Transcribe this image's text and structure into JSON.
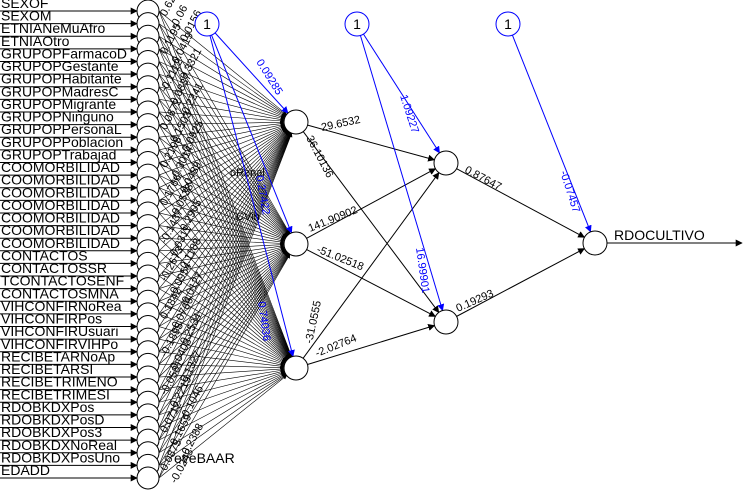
{
  "network": {
    "inputs": [
      "SEXOF",
      "SEXOM",
      "ETNIANeMuAfro",
      "ETNIAOtro",
      "GRUPOPFarmacoD",
      "GRUPOPGestante",
      "GRUPOPHabitante",
      "GRUPOPMadresC",
      "GRUPOPMigrante",
      "GRUPOPNinguno",
      "GRUPOPPersonaL",
      "GRUPOPPoblacion",
      "GRUPOPTrabajad",
      "COOMORBILIDAD",
      "COOMORBILIDAD",
      "COOMORBILIDAD",
      "COOMORBILIDAD",
      "COOMORBILIDAD",
      "COOMORBILIDAD",
      "COOMORBILIDAD",
      "CONTACTOS",
      "CONTACTOSSR",
      "TCONTACTOSENF",
      "CONTACTOSMNA",
      "VIHCONFIRNoRea",
      "VIHCONFIRPos",
      "VIHCONFIRUsuari",
      "VIHCONFIRVIHPo",
      "RECIBETARNoAp",
      "RECIBETARSI",
      "RECIBETRIMENO",
      "RECIBETRIMESI",
      "RDOBKDXPos",
      "RDOBKDXPosD",
      "RDOBKDXPos3",
      "RDOBKDXNoReal",
      "RDOBKDXPosUno",
      "EDADD"
    ],
    "input_overflow_texts": [
      "eveBAAR",
      "oRenal",
      "CVih"
    ],
    "output_label": "RDOCULTIVO",
    "bias_labels": [
      "1",
      "1",
      "1"
    ],
    "hidden1_bias_weights": [
      "0.09285",
      "0.27422",
      "0.74036"
    ],
    "hidden2_bias_weights": [
      "1.09227",
      "16.99901"
    ],
    "output_bias_weight": "-0.07457",
    "h1_to_h2_weights": [
      {
        "from": 1,
        "to": 1,
        "label": "29.6532"
      },
      {
        "from": 1,
        "to": 2,
        "label": "36.10136"
      },
      {
        "from": 2,
        "to": 1,
        "label": "141.90902"
      },
      {
        "from": 2,
        "to": 2,
        "label": "-51.02518"
      },
      {
        "from": 3,
        "to": 1,
        "label": "-31.0555"
      },
      {
        "from": 3,
        "to": 2,
        "label": "-2.02764"
      }
    ],
    "h2_to_out_weights": [
      "0.87647",
      "0.19293"
    ],
    "input_weight_glimpses": [
      "0.6223",
      "-0.06",
      "0.0156",
      "0.1195",
      "-0.0419",
      "0.3321",
      "-0.1112",
      "0.0837",
      "-0.2241",
      "0.0672",
      "0.1503",
      "-0.0925",
      "0.2198",
      "-0.3014",
      "0.0489",
      "0.1766",
      "-0.0538",
      "0.2905",
      "-0.1437",
      "0.0311",
      "0.1188",
      "-0.2673",
      "0.0954",
      "-0.0127",
      "0.1842",
      "-0.0766",
      "0.2534",
      "-0.1895",
      "0.0403",
      "0.1327",
      "-0.0581",
      "0.2219",
      "-0.1046",
      "0.0712",
      "0.1659",
      "-0.2388",
      "0.0875",
      "-0.0243"
    ],
    "colors": {
      "bias": "#0000ff",
      "weights": "#000000",
      "background": "#ffffff"
    }
  }
}
